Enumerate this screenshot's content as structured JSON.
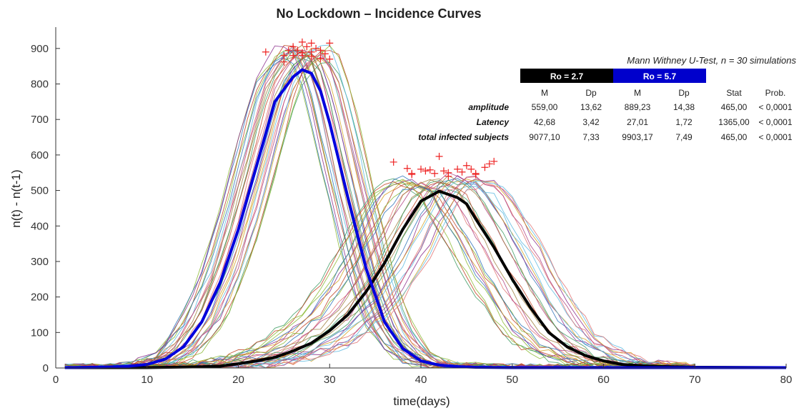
{
  "chart_data": {
    "type": "line",
    "title": "No Lockdown – Incidence Curves",
    "xlabel": "time(days)",
    "ylabel": "n(t) - n(t-1)",
    "xlim": [
      0,
      80
    ],
    "ylim": [
      0,
      960
    ],
    "xticks": [
      0,
      10,
      20,
      30,
      40,
      50,
      60,
      70,
      80
    ],
    "yticks": [
      0,
      100,
      200,
      300,
      400,
      500,
      600,
      700,
      800,
      900
    ],
    "grid": false,
    "series": [
      {
        "role": "mean",
        "color": "#0000dd",
        "x": [
          1,
          4,
          6,
          8,
          10,
          12,
          14,
          16,
          18,
          20,
          22,
          24,
          26,
          27,
          28,
          29,
          30,
          32,
          34,
          36,
          38,
          40,
          42,
          44,
          46,
          50,
          60,
          80
        ],
        "y": [
          1,
          2,
          3,
          5,
          10,
          25,
          60,
          130,
          240,
          390,
          570,
          750,
          820,
          840,
          830,
          780,
          690,
          480,
          280,
          130,
          55,
          20,
          8,
          4,
          2,
          1,
          1,
          1
        ]
      },
      {
        "role": "mean",
        "color": "#000000",
        "x": [
          1,
          5,
          10,
          15,
          18,
          20,
          22,
          24,
          26,
          28,
          30,
          32,
          34,
          36,
          38,
          40,
          42,
          44,
          45,
          46,
          48,
          50,
          52,
          54,
          56,
          58,
          60,
          62,
          65,
          70,
          80
        ],
        "y": [
          1,
          1,
          1,
          3,
          5,
          12,
          20,
          30,
          48,
          70,
          105,
          150,
          215,
          295,
          390,
          470,
          498,
          480,
          462,
          420,
          340,
          250,
          170,
          100,
          60,
          35,
          20,
          10,
          5,
          2,
          1
        ]
      }
    ],
    "peak_markers": {
      "color": "#ee2222",
      "points": [
        [
          23,
          890
        ],
        [
          25,
          880
        ],
        [
          25.5,
          895
        ],
        [
          26,
          905
        ],
        [
          26.5,
          895
        ],
        [
          27,
          918
        ],
        [
          27.5,
          905
        ],
        [
          28,
          915
        ],
        [
          28.5,
          900
        ],
        [
          29,
          895
        ],
        [
          29.5,
          885
        ],
        [
          30,
          915
        ],
        [
          26,
          880
        ],
        [
          27,
          880
        ],
        [
          28,
          878
        ],
        [
          29,
          872
        ],
        [
          30,
          870
        ],
        [
          25,
          862
        ],
        [
          27,
          888
        ],
        [
          28,
          890
        ],
        [
          37,
          580
        ],
        [
          38.5,
          562
        ],
        [
          39,
          548
        ],
        [
          40,
          560
        ],
        [
          40.5,
          555
        ],
        [
          41,
          558
        ],
        [
          41.5,
          548
        ],
        [
          42,
          596
        ],
        [
          42.5,
          555
        ],
        [
          43,
          550
        ],
        [
          44,
          560
        ],
        [
          44.5,
          552
        ],
        [
          45,
          570
        ],
        [
          45.5,
          560
        ],
        [
          46,
          548
        ],
        [
          47,
          565
        ],
        [
          47.5,
          575
        ],
        [
          48,
          582
        ],
        [
          39,
          545
        ],
        [
          43,
          540
        ],
        [
          46,
          545
        ]
      ]
    },
    "stats_table": {
      "caption": "Mann Withney U-Test, n = 30 simulations",
      "groups": [
        "Ro = 2.7",
        "Ro = 5.7"
      ],
      "group_colors": [
        "#000000",
        "#0000cc"
      ],
      "columns": [
        "M",
        "Dp",
        "M",
        "Dp",
        "Stat",
        "Prob."
      ],
      "rows": [
        {
          "label": "amplitude",
          "values": [
            "559,00",
            "13,62",
            "889,23",
            "14,38",
            "465,00",
            "< 0,0001"
          ]
        },
        {
          "label": "Latency",
          "values": [
            "42,68",
            "3,42",
            "27,01",
            "1,72",
            "1365,00",
            "< 0,0001"
          ]
        },
        {
          "label": "total infected subjects",
          "values": [
            "9077,10",
            "7,33",
            "9903,17",
            "7,49",
            "465,00",
            "< 0,0001"
          ]
        }
      ]
    }
  }
}
